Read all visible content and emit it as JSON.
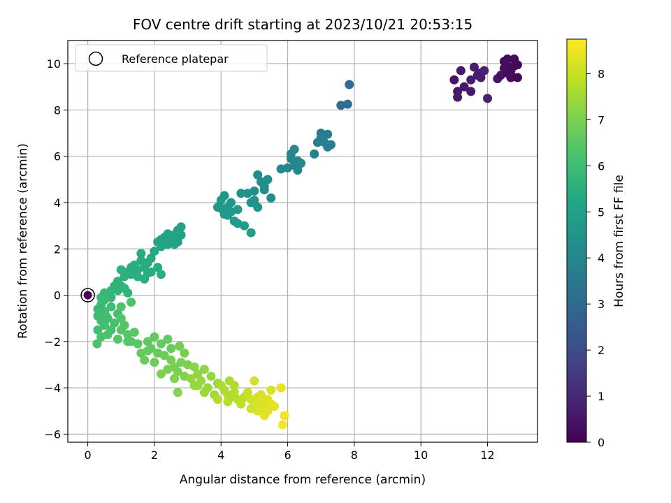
{
  "chart_data": {
    "type": "scatter",
    "title": "FOV centre drift starting at 2023/10/21 20:53:15",
    "xlabel": "Angular distance from reference (arcmin)",
    "ylabel": "Rotation from reference (arcmin)",
    "xlim": [
      -0.6,
      13.5
    ],
    "ylim": [
      -6.35,
      11.0
    ],
    "xticks": [
      0,
      2,
      4,
      6,
      8,
      10,
      12
    ],
    "yticks": [
      -6,
      -4,
      -2,
      0,
      2,
      4,
      6,
      8,
      10
    ],
    "grid": true,
    "legend": {
      "position": "top-left",
      "entries": [
        "Reference platepar"
      ]
    },
    "reference_point": {
      "x": 0,
      "y": 0,
      "hours": 0.0
    },
    "colorbar": {
      "label": "Hours from first FF file",
      "range": [
        0,
        8.75
      ],
      "ticks": [
        0,
        1,
        2,
        3,
        4,
        5,
        6,
        7,
        8
      ],
      "colormap": "viridis"
    },
    "points": [
      [
        11.0,
        9.3,
        0.5
      ],
      [
        11.1,
        8.8,
        0.55
      ],
      [
        11.2,
        9.7,
        0.6
      ],
      [
        11.1,
        8.55,
        0.62
      ],
      [
        11.3,
        9.0,
        0.58
      ],
      [
        11.5,
        9.3,
        0.65
      ],
      [
        11.5,
        8.8,
        0.63
      ],
      [
        11.6,
        9.85,
        0.7
      ],
      [
        11.7,
        9.5,
        0.7
      ],
      [
        11.8,
        9.6,
        0.75
      ],
      [
        11.8,
        9.4,
        0.72
      ],
      [
        11.9,
        9.7,
        0.78
      ],
      [
        12.0,
        8.5,
        0.8
      ],
      [
        12.3,
        9.35,
        0.5
      ],
      [
        12.4,
        9.5,
        0.4
      ],
      [
        12.5,
        9.8,
        0.35
      ],
      [
        12.6,
        10.2,
        0.3
      ],
      [
        12.6,
        9.9,
        0.32
      ],
      [
        12.7,
        9.5,
        0.28
      ],
      [
        12.7,
        9.7,
        0.25
      ],
      [
        12.8,
        10.2,
        0.2
      ],
      [
        12.8,
        9.9,
        0.18
      ],
      [
        12.9,
        9.95,
        0.15
      ],
      [
        12.7,
        9.4,
        0.22
      ],
      [
        12.6,
        9.6,
        0.27
      ],
      [
        12.9,
        9.4,
        0.12
      ],
      [
        12.5,
        10.1,
        0.3
      ],
      [
        7.6,
        8.2,
        3.2
      ],
      [
        7.8,
        8.25,
        3.2
      ],
      [
        7.85,
        9.1,
        3.1
      ],
      [
        6.9,
        6.6,
        3.6
      ],
      [
        7.0,
        7.0,
        3.7
      ],
      [
        7.1,
        6.9,
        3.65
      ],
      [
        7.2,
        6.4,
        3.8
      ],
      [
        7.1,
        6.6,
        3.75
      ],
      [
        7.3,
        6.5,
        3.7
      ],
      [
        6.8,
        6.1,
        3.8
      ],
      [
        7.0,
        6.8,
        3.72
      ],
      [
        7.2,
        6.95,
        3.68
      ],
      [
        6.1,
        6.1,
        4.0
      ],
      [
        6.2,
        6.3,
        4.0
      ],
      [
        6.3,
        5.8,
        4.05
      ],
      [
        6.0,
        5.5,
        4.1
      ],
      [
        6.2,
        5.6,
        4.02
      ],
      [
        6.4,
        5.7,
        4.05
      ],
      [
        6.3,
        5.4,
        4.1
      ],
      [
        5.8,
        5.45,
        4.15
      ],
      [
        6.1,
        5.9,
        4.0
      ],
      [
        5.1,
        5.2,
        4.2
      ],
      [
        5.2,
        4.9,
        4.25
      ],
      [
        5.3,
        4.7,
        4.3
      ],
      [
        5.0,
        4.5,
        4.35
      ],
      [
        5.4,
        5.0,
        4.2
      ],
      [
        4.8,
        4.4,
        4.4
      ],
      [
        5.0,
        4.1,
        4.45
      ],
      [
        5.1,
        3.8,
        4.5
      ],
      [
        4.9,
        4.0,
        4.4
      ],
      [
        5.5,
        4.2,
        4.3
      ],
      [
        4.6,
        4.4,
        4.45
      ],
      [
        5.3,
        4.55,
        4.3
      ],
      [
        4.0,
        4.1,
        4.6
      ],
      [
        4.1,
        4.3,
        4.6
      ],
      [
        4.2,
        3.8,
        4.65
      ],
      [
        4.3,
        3.6,
        4.7
      ],
      [
        4.4,
        3.2,
        4.75
      ],
      [
        4.1,
        3.5,
        4.7
      ],
      [
        3.9,
        3.8,
        4.62
      ],
      [
        4.5,
        3.1,
        4.8
      ],
      [
        4.7,
        3.0,
        4.8
      ],
      [
        4.9,
        2.7,
        4.85
      ],
      [
        4.3,
        4.0,
        4.6
      ],
      [
        4.5,
        3.7,
        4.7
      ],
      [
        4.2,
        3.45,
        4.72
      ],
      [
        4.0,
        3.75,
        4.65
      ],
      [
        2.8,
        2.95,
        5.0
      ],
      [
        2.7,
        2.8,
        5.0
      ],
      [
        2.6,
        2.6,
        5.05
      ],
      [
        2.5,
        2.4,
        5.1
      ],
      [
        2.4,
        2.2,
        5.15
      ],
      [
        2.3,
        2.5,
        5.1
      ],
      [
        2.2,
        2.1,
        5.2
      ],
      [
        2.1,
        2.3,
        5.15
      ],
      [
        2.0,
        1.9,
        5.25
      ],
      [
        2.7,
        2.3,
        5.05
      ],
      [
        2.8,
        2.6,
        5.02
      ],
      [
        2.4,
        2.65,
        5.08
      ],
      [
        2.2,
        2.4,
        5.15
      ],
      [
        2.6,
        2.2,
        5.1
      ],
      [
        1.9,
        1.6,
        5.3
      ],
      [
        1.8,
        1.4,
        5.35
      ],
      [
        1.7,
        1.2,
        5.4
      ],
      [
        1.6,
        1.5,
        5.35
      ],
      [
        1.5,
        1.1,
        5.45
      ],
      [
        1.4,
        1.3,
        5.45
      ],
      [
        1.3,
        0.9,
        5.5
      ],
      [
        1.2,
        1.0,
        5.5
      ],
      [
        1.1,
        0.8,
        5.55
      ],
      [
        1.0,
        1.1,
        5.55
      ],
      [
        1.6,
        1.8,
        5.35
      ],
      [
        2.1,
        1.2,
        5.4
      ],
      [
        1.9,
        1.0,
        5.45
      ],
      [
        1.7,
        0.7,
        5.5
      ],
      [
        1.5,
        0.8,
        5.5
      ],
      [
        1.3,
        1.2,
        5.45
      ],
      [
        2.2,
        0.9,
        5.45
      ],
      [
        1.8,
        0.95,
        5.48
      ],
      [
        0.9,
        0.6,
        5.6
      ],
      [
        0.8,
        0.4,
        5.65
      ],
      [
        0.7,
        0.2,
        5.7
      ],
      [
        0.6,
        0.0,
        5.75
      ],
      [
        0.5,
        -0.2,
        5.8
      ],
      [
        0.4,
        -0.4,
        5.85
      ],
      [
        0.3,
        -0.6,
        5.9
      ],
      [
        0.9,
        0.2,
        5.65
      ],
      [
        1.0,
        0.4,
        5.6
      ],
      [
        0.7,
        -0.1,
        5.75
      ],
      [
        0.5,
        0.1,
        5.8
      ],
      [
        1.1,
        0.3,
        5.62
      ],
      [
        1.2,
        0.1,
        5.65
      ],
      [
        0.4,
        -0.1,
        5.85
      ],
      [
        0.3,
        -0.9,
        6.0
      ],
      [
        0.4,
        -1.1,
        6.05
      ],
      [
        0.5,
        -1.3,
        6.1
      ],
      [
        0.6,
        -1.0,
        6.05
      ],
      [
        0.7,
        -1.5,
        6.15
      ],
      [
        0.3,
        -1.5,
        6.1
      ],
      [
        0.5,
        -0.7,
        6.0
      ],
      [
        0.8,
        -1.2,
        6.15
      ],
      [
        0.9,
        -0.8,
        6.1
      ],
      [
        0.6,
        -1.7,
        6.2
      ],
      [
        0.4,
        -1.8,
        6.2
      ],
      [
        0.28,
        -2.1,
        6.25
      ],
      [
        0.7,
        -0.5,
        6.0
      ],
      [
        0.55,
        -0.9,
        6.05
      ],
      [
        1.0,
        -1.0,
        6.3
      ],
      [
        1.1,
        -1.3,
        6.35
      ],
      [
        1.2,
        -1.7,
        6.4
      ],
      [
        1.3,
        -2.0,
        6.45
      ],
      [
        1.0,
        -1.5,
        6.35
      ],
      [
        0.9,
        -1.9,
        6.4
      ],
      [
        1.4,
        -1.6,
        6.45
      ],
      [
        1.5,
        -2.1,
        6.5
      ],
      [
        1.2,
        -2.0,
        6.45
      ],
      [
        1.0,
        -0.5,
        6.3
      ],
      [
        1.3,
        -0.3,
        6.3
      ],
      [
        1.8,
        -2.0,
        6.6
      ],
      [
        1.9,
        -2.3,
        6.65
      ],
      [
        2.0,
        -1.8,
        6.6
      ],
      [
        2.1,
        -2.5,
        6.7
      ],
      [
        1.7,
        -2.8,
        6.75
      ],
      [
        1.6,
        -2.5,
        6.7
      ],
      [
        2.2,
        -2.1,
        6.65
      ],
      [
        2.3,
        -2.6,
        6.75
      ],
      [
        2.0,
        -2.9,
        6.8
      ],
      [
        1.8,
        -2.4,
        6.65
      ],
      [
        2.4,
        -1.9,
        6.6
      ],
      [
        2.5,
        -2.3,
        6.7
      ],
      [
        2.5,
        -2.8,
        6.9
      ],
      [
        2.6,
        -3.1,
        6.95
      ],
      [
        2.7,
        -3.3,
        7.0
      ],
      [
        2.8,
        -2.9,
        6.95
      ],
      [
        2.9,
        -3.5,
        7.05
      ],
      [
        2.4,
        -3.2,
        7.0
      ],
      [
        2.2,
        -3.4,
        7.05
      ],
      [
        2.6,
        -3.6,
        7.1
      ],
      [
        3.0,
        -3.0,
        7.0
      ],
      [
        2.75,
        -2.2,
        6.85
      ],
      [
        2.9,
        -2.5,
        6.9
      ],
      [
        2.7,
        -4.2,
        7.15
      ],
      [
        3.2,
        -3.1,
        7.2
      ],
      [
        3.3,
        -3.4,
        7.3
      ],
      [
        3.4,
        -3.7,
        7.35
      ],
      [
        3.5,
        -3.2,
        7.3
      ],
      [
        3.6,
        -4.0,
        7.4
      ],
      [
        3.3,
        -3.9,
        7.4
      ],
      [
        3.1,
        -3.6,
        7.3
      ],
      [
        3.7,
        -3.5,
        7.35
      ],
      [
        3.8,
        -4.3,
        7.5
      ],
      [
        3.5,
        -4.2,
        7.45
      ],
      [
        3.9,
        -3.8,
        7.45
      ],
      [
        3.2,
        -3.9,
        7.35
      ],
      [
        4.0,
        -3.9,
        7.6
      ],
      [
        4.1,
        -4.1,
        7.65
      ],
      [
        4.2,
        -4.3,
        7.7
      ],
      [
        4.3,
        -4.4,
        7.75
      ],
      [
        4.4,
        -3.9,
        7.7
      ],
      [
        4.2,
        -4.6,
        7.8
      ],
      [
        3.9,
        -4.5,
        7.7
      ],
      [
        4.5,
        -4.5,
        7.8
      ],
      [
        4.6,
        -4.7,
        7.9
      ],
      [
        4.4,
        -4.2,
        7.75
      ],
      [
        4.7,
        -4.4,
        7.85
      ],
      [
        4.25,
        -3.7,
        7.6
      ],
      [
        4.8,
        -4.2,
        8.0
      ],
      [
        4.9,
        -4.5,
        8.1
      ],
      [
        5.0,
        -4.7,
        8.15
      ],
      [
        5.1,
        -4.4,
        8.2
      ],
      [
        5.2,
        -4.6,
        8.25
      ],
      [
        5.3,
        -4.8,
        8.3
      ],
      [
        5.4,
        -4.5,
        8.3
      ],
      [
        5.0,
        -4.9,
        8.2
      ],
      [
        5.1,
        -5.0,
        8.25
      ],
      [
        5.2,
        -4.3,
        8.2
      ],
      [
        5.5,
        -4.7,
        8.35
      ],
      [
        5.3,
        -5.2,
        8.4
      ],
      [
        5.5,
        -4.1,
        8.25
      ],
      [
        5.6,
        -4.8,
        8.4
      ],
      [
        5.0,
        -3.7,
        8.15
      ],
      [
        4.9,
        -4.9,
        8.15
      ],
      [
        5.3,
        -4.6,
        8.3
      ],
      [
        5.8,
        -4.0,
        8.45
      ],
      [
        5.9,
        -5.2,
        8.55
      ],
      [
        5.85,
        -5.6,
        8.6
      ],
      [
        5.4,
        -5.0,
        8.35
      ],
      [
        5.2,
        -4.9,
        8.3
      ]
    ]
  }
}
